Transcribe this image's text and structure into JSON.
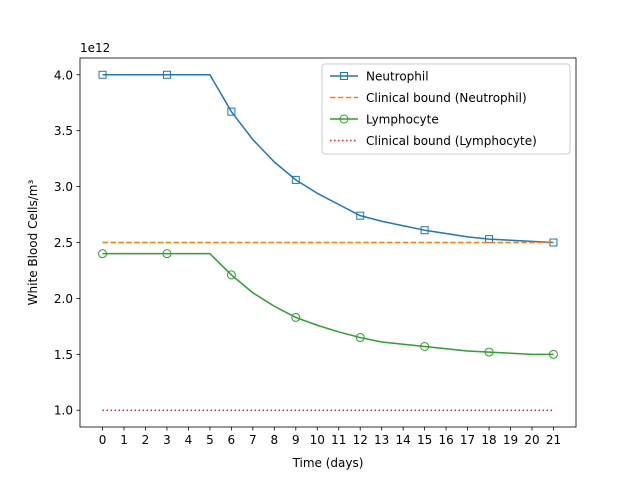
{
  "chart_data": {
    "type": "line",
    "xlabel": "Time (days)",
    "ylabel": "White Blood Cells/m³",
    "y_offset_label": "1e12",
    "xlim": [
      -1.05,
      22.05
    ],
    "ylim": [
      0.85,
      4.15
    ],
    "x_ticks": [
      0,
      1,
      2,
      3,
      4,
      5,
      6,
      7,
      8,
      9,
      10,
      11,
      12,
      13,
      14,
      15,
      16,
      17,
      18,
      19,
      20,
      21
    ],
    "x_tick_labels": [
      "0",
      "1",
      "2",
      "3",
      "4",
      "5",
      "6",
      "7",
      "8",
      "9",
      "10",
      "11",
      "12",
      "13",
      "14",
      "15",
      "16",
      "17",
      "18",
      "19",
      "20",
      "21"
    ],
    "y_ticks": [
      1.0,
      1.5,
      2.0,
      2.5,
      3.0,
      3.5,
      4.0
    ],
    "y_tick_labels": [
      "1.0",
      "1.5",
      "2.0",
      "2.5",
      "3.0",
      "3.5",
      "4.0"
    ],
    "grid": false,
    "legend_position": "top-right",
    "x": [
      0,
      1,
      2,
      3,
      4,
      5,
      6,
      7,
      8,
      9,
      10,
      11,
      12,
      13,
      14,
      15,
      16,
      17,
      18,
      19,
      20,
      21
    ],
    "series": [
      {
        "name": "Neutrophil",
        "color": "#1f77b4",
        "linestyle": "solid",
        "marker": "square",
        "markevery": 3,
        "values": [
          4.0,
          4.0,
          4.0,
          4.0,
          4.0,
          4.0,
          3.67,
          3.42,
          3.22,
          3.06,
          2.94,
          2.84,
          2.74,
          2.69,
          2.65,
          2.61,
          2.58,
          2.55,
          2.53,
          2.52,
          2.51,
          2.5
        ]
      },
      {
        "name": "Clinical bound (Neutrophil)",
        "color": "#ff7f0e",
        "linestyle": "dashed",
        "marker": "none",
        "values": [
          2.5,
          2.5,
          2.5,
          2.5,
          2.5,
          2.5,
          2.5,
          2.5,
          2.5,
          2.5,
          2.5,
          2.5,
          2.5,
          2.5,
          2.5,
          2.5,
          2.5,
          2.5,
          2.5,
          2.5,
          2.5,
          2.5
        ]
      },
      {
        "name": "Lymphocyte",
        "color": "#2ca02c",
        "linestyle": "solid",
        "marker": "circle",
        "markevery": 3,
        "values": [
          2.4,
          2.4,
          2.4,
          2.4,
          2.4,
          2.4,
          2.21,
          2.05,
          1.93,
          1.83,
          1.76,
          1.7,
          1.65,
          1.61,
          1.59,
          1.57,
          1.55,
          1.53,
          1.52,
          1.51,
          1.5,
          1.5
        ]
      },
      {
        "name": "Clinical bound (Lymphocyte)",
        "color": "#d62728",
        "linestyle": "dotted",
        "marker": "none",
        "values": [
          1.0,
          1.0,
          1.0,
          1.0,
          1.0,
          1.0,
          1.0,
          1.0,
          1.0,
          1.0,
          1.0,
          1.0,
          1.0,
          1.0,
          1.0,
          1.0,
          1.0,
          1.0,
          1.0,
          1.0,
          1.0,
          1.0
        ]
      }
    ]
  }
}
